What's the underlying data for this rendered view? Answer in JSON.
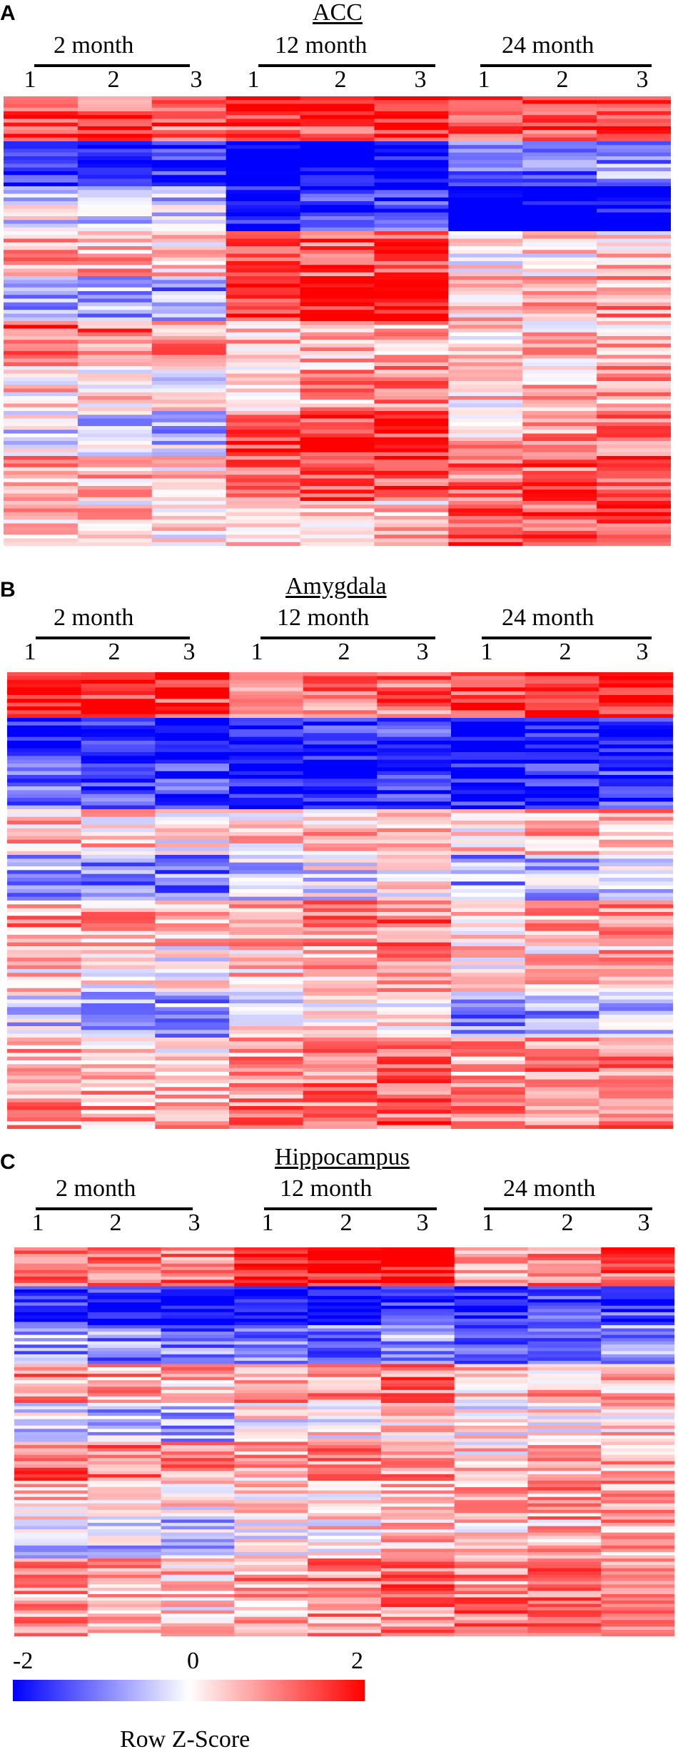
{
  "chart_data": [
    {
      "type": "heatmap",
      "panel": "A",
      "title": "ACC",
      "groups": [
        "2 month",
        "12 month",
        "24 month"
      ],
      "replicates": [
        "1",
        "2",
        "3"
      ],
      "column_profiles": [
        [
          0.75,
          -0.9,
          -0.2,
          0.3,
          -0.4,
          0.6,
          0.1,
          -0.2,
          0.3,
          0.2
        ],
        [
          0.85,
          -1.3,
          -0.9,
          0.7,
          1.1,
          0.3,
          0.4,
          0.8,
          0.7,
          0.2
        ],
        [
          0.8,
          -0.6,
          -1.3,
          0.15,
          0.35,
          0.25,
          0.3,
          0.4,
          0.7,
          0.75
        ]
      ],
      "noise": 0.4,
      "seed": 11
    },
    {
      "type": "heatmap",
      "panel": "B",
      "title": "Amygdala",
      "groups": [
        "2 month",
        "12 month",
        "24 month"
      ],
      "replicates": [
        "1",
        "2",
        "3"
      ],
      "column_profiles": [
        [
          0.9,
          -1.0,
          -0.7,
          0.2,
          -0.5,
          0.35,
          0.1,
          -0.3,
          0.3,
          0.4
        ],
        [
          0.55,
          -0.9,
          -1.0,
          0.3,
          -0.1,
          0.5,
          0.3,
          0.1,
          0.5,
          0.6
        ],
        [
          0.95,
          -1.1,
          -0.95,
          0.3,
          -0.3,
          0.35,
          0.25,
          -0.4,
          0.5,
          0.55
        ]
      ],
      "noise": 0.4,
      "seed": 23
    },
    {
      "type": "heatmap",
      "panel": "C",
      "title": "Hippocampus",
      "groups": [
        "2 month",
        "12 month",
        "24 month"
      ],
      "replicates": [
        "1",
        "2",
        "3"
      ],
      "column_profiles": [
        [
          0.65,
          -1.0,
          -0.5,
          0.4,
          -0.3,
          0.55,
          0.15,
          -0.25,
          0.35,
          0.3
        ],
        [
          1.05,
          -1.1,
          -0.55,
          0.5,
          0.1,
          0.45,
          0.2,
          0.15,
          0.55,
          0.45
        ],
        [
          0.6,
          -0.9,
          -0.6,
          0.3,
          0.1,
          0.3,
          0.4,
          0.3,
          0.55,
          0.65
        ]
      ],
      "noise": 0.4,
      "seed": 37
    }
  ],
  "legend": {
    "title": "Row Z-Score",
    "min_label": "-2",
    "mid_label": "0",
    "max_label": "2",
    "range": [
      -2,
      2
    ],
    "colors": {
      "low": "#0000ff",
      "mid": "#ffffff",
      "high": "#ff0000"
    }
  }
}
